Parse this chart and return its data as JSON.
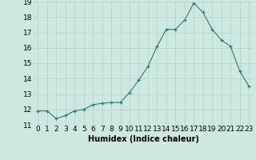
{
  "x": [
    0,
    1,
    2,
    3,
    4,
    5,
    6,
    7,
    8,
    9,
    10,
    11,
    12,
    13,
    14,
    15,
    16,
    17,
    18,
    19,
    20,
    21,
    22,
    23
  ],
  "y": [
    11.9,
    11.9,
    11.4,
    11.6,
    11.9,
    12.0,
    12.3,
    12.4,
    12.45,
    12.45,
    13.1,
    13.9,
    14.8,
    16.1,
    17.2,
    17.2,
    17.8,
    18.9,
    18.3,
    17.2,
    16.5,
    16.1,
    14.5,
    13.5
  ],
  "xlabel": "Humidex (Indice chaleur)",
  "ylim": [
    11,
    19
  ],
  "xlim_min": -0.5,
  "xlim_max": 23.5,
  "yticks": [
    11,
    12,
    13,
    14,
    15,
    16,
    17,
    18,
    19
  ],
  "xticks": [
    0,
    1,
    2,
    3,
    4,
    5,
    6,
    7,
    8,
    9,
    10,
    11,
    12,
    13,
    14,
    15,
    16,
    17,
    18,
    19,
    20,
    21,
    22,
    23
  ],
  "line_color": "#2e7d6e",
  "marker": "+",
  "bg_color": "#cce8e0",
  "grid_color": "#b0d0c8",
  "label_fontsize": 7,
  "tick_fontsize": 6.5
}
